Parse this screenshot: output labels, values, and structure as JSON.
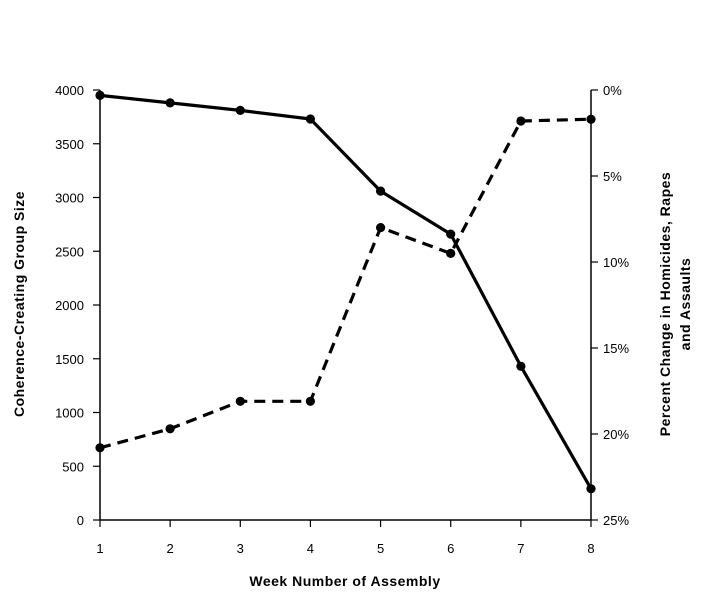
{
  "chart_data": {
    "type": "line",
    "x": [
      1,
      2,
      3,
      4,
      5,
      6,
      7,
      8
    ],
    "xlabel": "Week Number of Assembly",
    "ylabel_left": "Coherence-Creating Group Size",
    "ylabel_right_lines": [
      "Percent Change in Homicides, Rapes",
      "and Assaults"
    ],
    "left_axis": {
      "ylim": [
        0,
        4000
      ],
      "ticks": [
        0,
        500,
        1000,
        1500,
        2000,
        2500,
        3000,
        3500,
        4000
      ],
      "tick_labels": [
        "0",
        "500",
        "1000",
        "1500",
        "2000",
        "2500",
        "3000",
        "3500",
        "4000"
      ]
    },
    "right_axis": {
      "ylim": [
        0,
        25
      ],
      "inverted": true,
      "ticks": [
        0,
        5,
        10,
        15,
        20,
        25
      ],
      "tick_labels": [
        "0%",
        "5%",
        "10%",
        "15%",
        "20%",
        "25%"
      ]
    },
    "series": [
      {
        "axis": "left",
        "style": "solid",
        "values": [
          3950,
          3880,
          3810,
          3730,
          3060,
          2660,
          1430,
          290
        ]
      },
      {
        "axis": "right",
        "style": "dashed",
        "values": [
          20.8,
          19.7,
          18.1,
          18.1,
          8.0,
          9.5,
          1.8,
          1.7
        ]
      }
    ],
    "grid": false,
    "legend": "none"
  }
}
